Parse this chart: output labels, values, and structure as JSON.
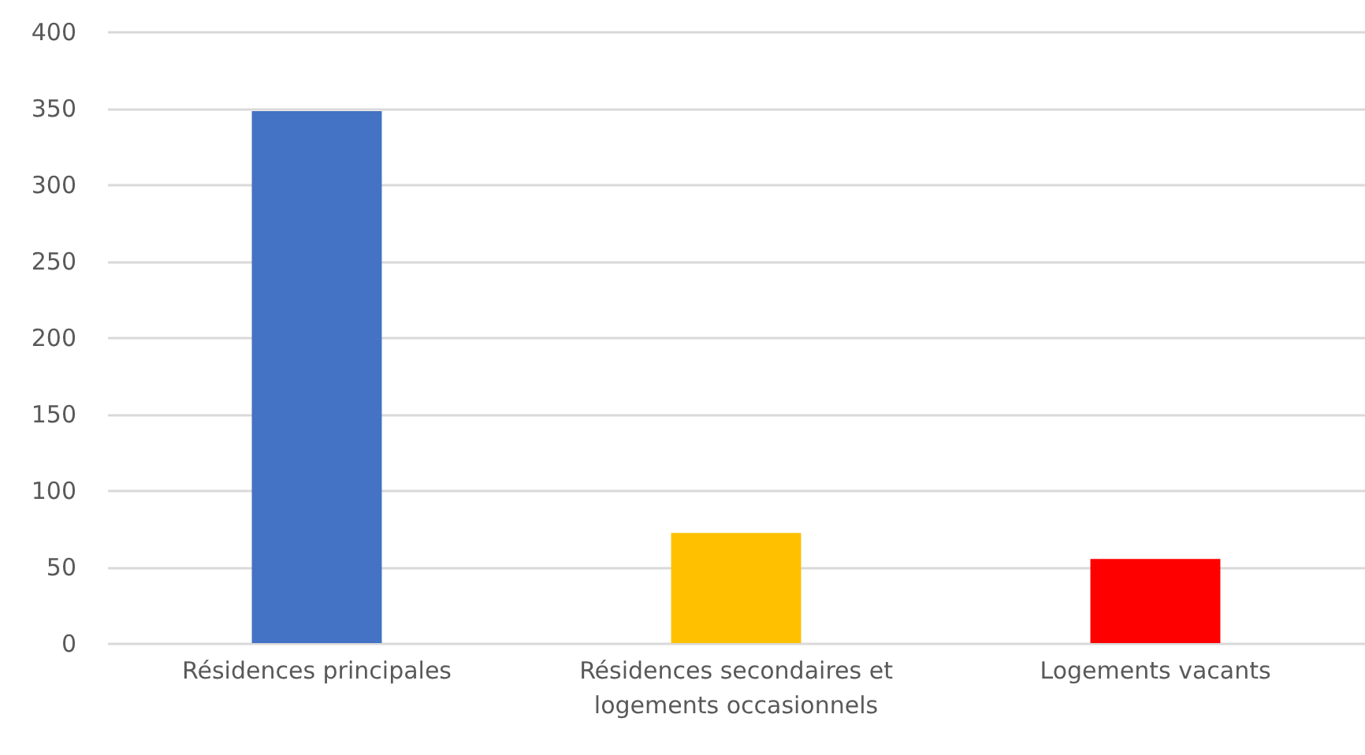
{
  "chart_data": {
    "type": "bar",
    "categories": [
      "Résidences principales",
      "Résidences secondaires et logements occasionnels",
      "Logements vacants"
    ],
    "values": [
      348,
      72,
      55
    ],
    "colors": [
      "#4472c4",
      "#ffc000",
      "#ff0000"
    ],
    "ylim": [
      0,
      400
    ],
    "yticks": [
      0,
      50,
      100,
      150,
      200,
      250,
      300,
      350,
      400
    ],
    "grid": "y"
  }
}
